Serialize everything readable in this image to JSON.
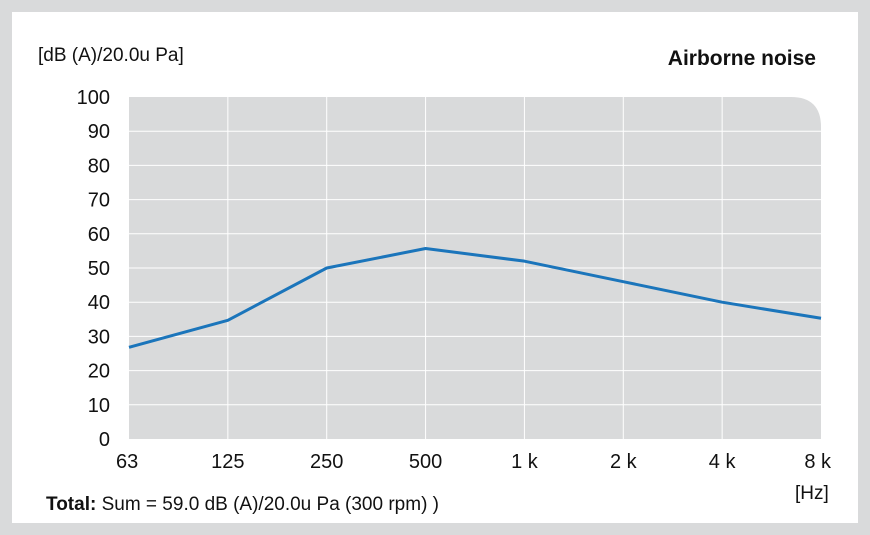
{
  "chart_data": {
    "type": "line",
    "title": "Airborne noise",
    "ylabel": "[dB (A)/20.0u Pa]",
    "xlabel": "[Hz]",
    "x": [
      "63",
      "125",
      "250",
      "500",
      "1 k",
      "2 k",
      "4 k",
      "8 k"
    ],
    "yticks": [
      "100",
      "90",
      "80",
      "70",
      "60",
      "50",
      "40",
      "30",
      "20",
      "10",
      "0"
    ],
    "ylim": [
      0,
      100
    ],
    "grid": true,
    "series": [
      {
        "values": [
          26.8,
          34.7,
          50.0,
          55.7,
          52.0,
          46.0,
          40.0,
          35.3
        ],
        "color": "#1b75bb"
      }
    ],
    "colors": {
      "plot_bg": "#d9dadb",
      "grid": "#ffffff",
      "line": "#1b75bb"
    }
  },
  "footer": {
    "total_label": "Total:",
    "total_text": " Sum = 59.0 dB (A)/20.0u Pa (300 rpm) )"
  }
}
